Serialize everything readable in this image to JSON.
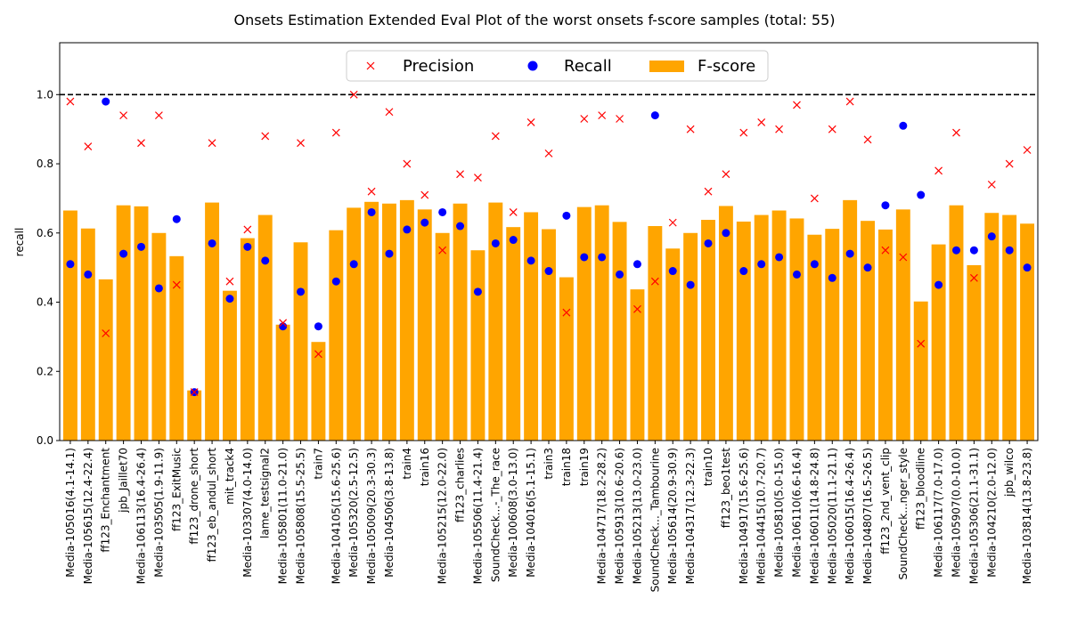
{
  "chart_data": {
    "type": "bar",
    "title": "Onsets Estimation Extended Eval Plot of the worst onsets f-score  samples (total: 55)",
    "xlabel": "",
    "ylabel": "recall",
    "ylim": [
      0,
      1.15
    ],
    "yticks": [
      "0.0",
      "0.2",
      "0.4",
      "0.6",
      "0.8",
      "1.0"
    ],
    "reference_line": 1.0,
    "legend_position": "top-center",
    "categories": [
      "Media-105016(4.1-14.1)",
      "Media-105615(12.4-22.4)",
      "ff123_Enchantment",
      "jpb_Jaillet70",
      "Media-106113(16.4-26.4)",
      "Media-103505(1.9-11.9)",
      "ff123_ExitMusic",
      "ff123_drone_short",
      "ff123_eb_andul_short",
      "mit_track4",
      "Media-103307(4.0-14.0)",
      "lame_testsignal2",
      "Media-105801(11.0-21.0)",
      "Media-105808(15.5-25.5)",
      "train7",
      "Media-104105(15.6-25.6)",
      "Media-105320(2.5-12.5)",
      "Media-105009(20.3-30.3)",
      "Media-104506(3.8-13.8)",
      "train4",
      "train16",
      "Media-105215(12.0-22.0)",
      "ff123_charlies",
      "Media-105506(11.4-21.4)",
      "SoundCheck...-_The_race",
      "Media-100608(3.0-13.0)",
      "Media-104016(5.1-15.1)",
      "train3",
      "train18",
      "train19",
      "Media-104717(18.2-28.2)",
      "Media-105913(10.6-20.6)",
      "Media-105213(13.0-23.0)",
      "SoundCheck..._Tambourine",
      "Media-105614(20.9-30.9)",
      "Media-104317(12.3-22.3)",
      "train10",
      "ff123_beo1test",
      "Media-104917(15.6-25.6)",
      "Media-104415(10.7-20.7)",
      "Media-105810(5.0-15.0)",
      "Media-106110(6.6-16.4)",
      "Media-106011(14.8-24.8)",
      "Media-105020(11.1-21.1)",
      "Media-106015(16.4-26.4)",
      "Media-104807(16.5-26.5)",
      "ff123_2nd_vent_clip",
      "SoundCheck...nger_style",
      "ff123_bloodline",
      "Media-106117(7.0-17.0)",
      "Media-105907(0.0-10.0)",
      "Media-105306(21.1-31.1)",
      "Media-104210(2.0-12.0)",
      "jpb_wilco",
      "Media-103814(13.8-23.8)"
    ],
    "series": [
      {
        "name": "Precision",
        "marker": "x",
        "color": "#ff0000",
        "values": [
          0.98,
          0.85,
          0.31,
          0.94,
          0.86,
          0.94,
          0.45,
          0.14,
          0.86,
          0.46,
          0.61,
          0.88,
          0.34,
          0.86,
          0.25,
          0.89,
          1.0,
          0.72,
          0.95,
          0.8,
          0.71,
          0.55,
          0.77,
          0.76,
          0.88,
          0.66,
          0.92,
          0.83,
          0.37,
          0.93,
          0.94,
          0.93,
          0.38,
          0.46,
          0.63,
          0.9,
          0.72,
          0.77,
          0.89,
          0.92,
          0.9,
          0.97,
          0.7,
          0.9,
          0.98,
          0.87,
          0.55,
          0.53,
          0.28,
          0.78,
          0.89,
          0.47,
          0.74,
          0.8,
          0.84
        ]
      },
      {
        "name": "Recall",
        "marker": "o",
        "color": "#0000ff",
        "values": [
          0.51,
          0.48,
          0.98,
          0.54,
          0.56,
          0.44,
          0.64,
          0.14,
          0.57,
          0.41,
          0.56,
          0.52,
          0.33,
          0.43,
          0.33,
          0.46,
          0.51,
          0.66,
          0.54,
          0.61,
          0.63,
          0.66,
          0.62,
          0.43,
          0.57,
          0.58,
          0.52,
          0.49,
          0.65,
          0.53,
          0.53,
          0.48,
          0.51,
          0.94,
          0.49,
          0.45,
          0.57,
          0.6,
          0.49,
          0.51,
          0.53,
          0.48,
          0.51,
          0.47,
          0.54,
          0.5,
          0.68,
          0.91,
          0.71,
          0.45,
          0.55,
          0.55,
          0.59,
          0.55,
          0.5
        ]
      },
      {
        "name": "F-score",
        "marker": "bar",
        "color": "#ffa500",
        "values": [
          0.665,
          0.613,
          0.466,
          0.68,
          0.677,
          0.6,
          0.533,
          0.145,
          0.688,
          0.433,
          0.585,
          0.652,
          0.335,
          0.573,
          0.285,
          0.608,
          0.673,
          0.69,
          0.685,
          0.695,
          0.668,
          0.6,
          0.685,
          0.55,
          0.688,
          0.617,
          0.66,
          0.611,
          0.472,
          0.675,
          0.68,
          0.632,
          0.437,
          0.62,
          0.555,
          0.6,
          0.638,
          0.678,
          0.633,
          0.652,
          0.665,
          0.642,
          0.595,
          0.612,
          0.695,
          0.635,
          0.61,
          0.668,
          0.402,
          0.567,
          0.68,
          0.507,
          0.658,
          0.652,
          0.627
        ]
      }
    ]
  }
}
